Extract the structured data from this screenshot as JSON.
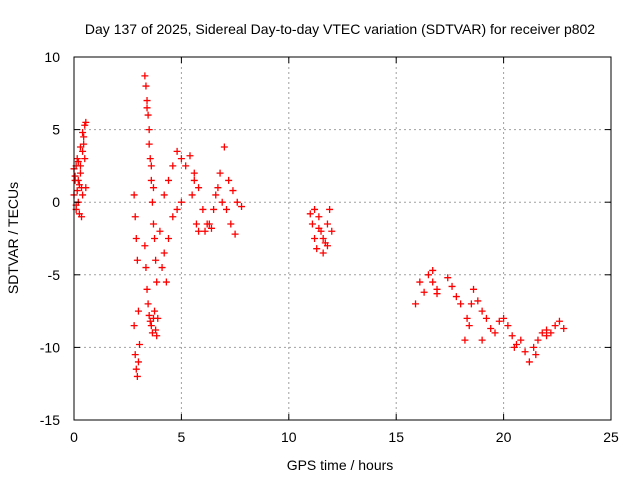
{
  "chart_data": {
    "type": "scatter",
    "title": "Day 137 of 2025, Sidereal Day-to-day VTEC variation (SDTVAR) for receiver p802",
    "xlabel": "GPS time / hours",
    "ylabel": "SDTVAR / TECUs",
    "xlim": [
      0,
      25
    ],
    "ylim": [
      -15,
      10
    ],
    "xticks": [
      0,
      5,
      10,
      15,
      20,
      25
    ],
    "yticks": [
      -15,
      -10,
      -5,
      0,
      5,
      10
    ],
    "xtick_labels": [
      "0",
      "5",
      "10",
      "15",
      "20",
      "25"
    ],
    "ytick_labels": [
      "-15",
      "-10",
      "-5",
      "0",
      "5",
      "10"
    ],
    "grid": true,
    "marker": "+",
    "color": "#ff0000",
    "series": [
      {
        "name": "SDTVAR",
        "x": [
          0.0,
          0.05,
          0.1,
          0.15,
          0.2,
          0.25,
          0.3,
          0.35,
          0.4,
          0.45,
          0.5,
          0.55,
          0.0,
          0.05,
          0.1,
          0.15,
          0.2,
          0.25,
          0.3,
          0.35,
          0.4,
          0.45,
          0.5,
          0.55,
          0.1,
          0.2,
          0.3,
          0.4,
          2.8,
          2.85,
          2.9,
          2.95,
          3.0,
          2.8,
          2.85,
          2.9,
          2.95,
          3.0,
          3.05,
          3.3,
          3.35,
          3.4,
          3.45,
          3.5,
          3.55,
          3.6,
          3.65,
          3.7,
          3.75,
          3.8,
          3.85,
          3.9,
          3.3,
          3.35,
          3.4,
          3.45,
          3.5,
          3.55,
          3.6,
          3.65,
          3.7,
          3.75,
          3.8,
          3.85,
          3.4,
          3.5,
          3.6,
          3.7,
          4.0,
          4.2,
          4.4,
          4.6,
          4.8,
          5.0,
          5.2,
          5.4,
          5.6,
          5.8,
          6.0,
          6.2,
          6.4,
          6.6,
          6.8,
          7.0,
          7.2,
          7.4,
          7.6,
          7.8,
          4.2,
          4.4,
          4.6,
          4.8,
          5.0,
          5.5,
          5.6,
          5.7,
          5.8,
          6.1,
          6.3,
          6.5,
          6.7,
          6.9,
          7.1,
          7.3,
          7.5,
          4.1,
          4.3,
          11.0,
          11.1,
          11.2,
          11.3,
          11.4,
          11.5,
          11.6,
          11.7,
          11.8,
          11.9,
          12.0,
          11.2,
          11.4,
          11.6,
          11.8,
          15.9,
          16.1,
          16.3,
          16.5,
          16.7,
          16.9,
          17.4,
          17.6,
          17.8,
          18.0,
          18.2,
          18.4,
          18.6,
          18.8,
          19.0,
          19.2,
          19.4,
          19.6,
          19.8,
          20.0,
          20.2,
          20.4,
          20.6,
          20.8,
          21.0,
          21.2,
          21.4,
          21.6,
          21.8,
          22.0,
          22.2,
          22.4,
          22.6,
          22.8,
          18.3,
          18.5,
          19.0,
          20.5,
          21.5,
          22.0,
          16.7,
          16.9
        ],
        "y": [
          0.5,
          1.5,
          2.5,
          3.0,
          0.0,
          -0.8,
          2.0,
          1.0,
          3.5,
          4.5,
          5.3,
          5.5,
          2.3,
          1.8,
          -0.5,
          0.8,
          2.8,
          1.2,
          3.8,
          -1.0,
          0.5,
          4.0,
          3.0,
          1.0,
          -0.2,
          1.5,
          2.5,
          4.8,
          0.5,
          -1.0,
          -2.5,
          -4.0,
          -7.5,
          -8.5,
          -10.5,
          -11.5,
          -12.0,
          -11.0,
          -9.8,
          8.7,
          8.0,
          7.0,
          6.0,
          5.0,
          3.0,
          1.5,
          0.0,
          -1.5,
          -2.5,
          -4.0,
          -5.5,
          -8.0,
          -3.0,
          -4.5,
          -6.0,
          -7.0,
          -7.8,
          -8.2,
          -8.5,
          -9.0,
          -8.0,
          -7.5,
          -8.8,
          -9.2,
          6.5,
          4.0,
          2.5,
          1.0,
          -2.0,
          0.5,
          1.5,
          2.5,
          3.5,
          3.0,
          2.5,
          3.2,
          2.0,
          1.0,
          -0.5,
          -1.5,
          -1.8,
          0.5,
          2.0,
          3.8,
          1.5,
          0.8,
          0.0,
          -0.3,
          -3.5,
          -2.5,
          -1.0,
          -0.5,
          0.0,
          0.5,
          1.5,
          -1.5,
          -2.0,
          -2.0,
          -1.5,
          -0.5,
          1.0,
          0.0,
          -0.5,
          -1.5,
          -2.2,
          -4.5,
          -5.5,
          -0.8,
          -1.5,
          -2.5,
          -3.2,
          -1.0,
          -2.0,
          -3.5,
          -2.8,
          -1.5,
          -0.5,
          -2.0,
          -0.5,
          -1.8,
          -2.5,
          -3.0,
          -7.0,
          -5.5,
          -6.2,
          -5.0,
          -4.7,
          -6.3,
          -5.2,
          -5.8,
          -6.5,
          -7.0,
          -9.5,
          -8.5,
          -6.0,
          -6.8,
          -7.5,
          -8.0,
          -8.7,
          -9.0,
          -8.2,
          -8.0,
          -8.5,
          -9.2,
          -9.8,
          -9.5,
          -10.3,
          -11.0,
          -10.0,
          -9.5,
          -9.0,
          -8.8,
          -9.0,
          -8.5,
          -8.2,
          -8.7,
          -8.0,
          -7.0,
          -9.5,
          -10.0,
          -10.5,
          -9.2,
          -5.5,
          -6.0
        ]
      }
    ]
  }
}
